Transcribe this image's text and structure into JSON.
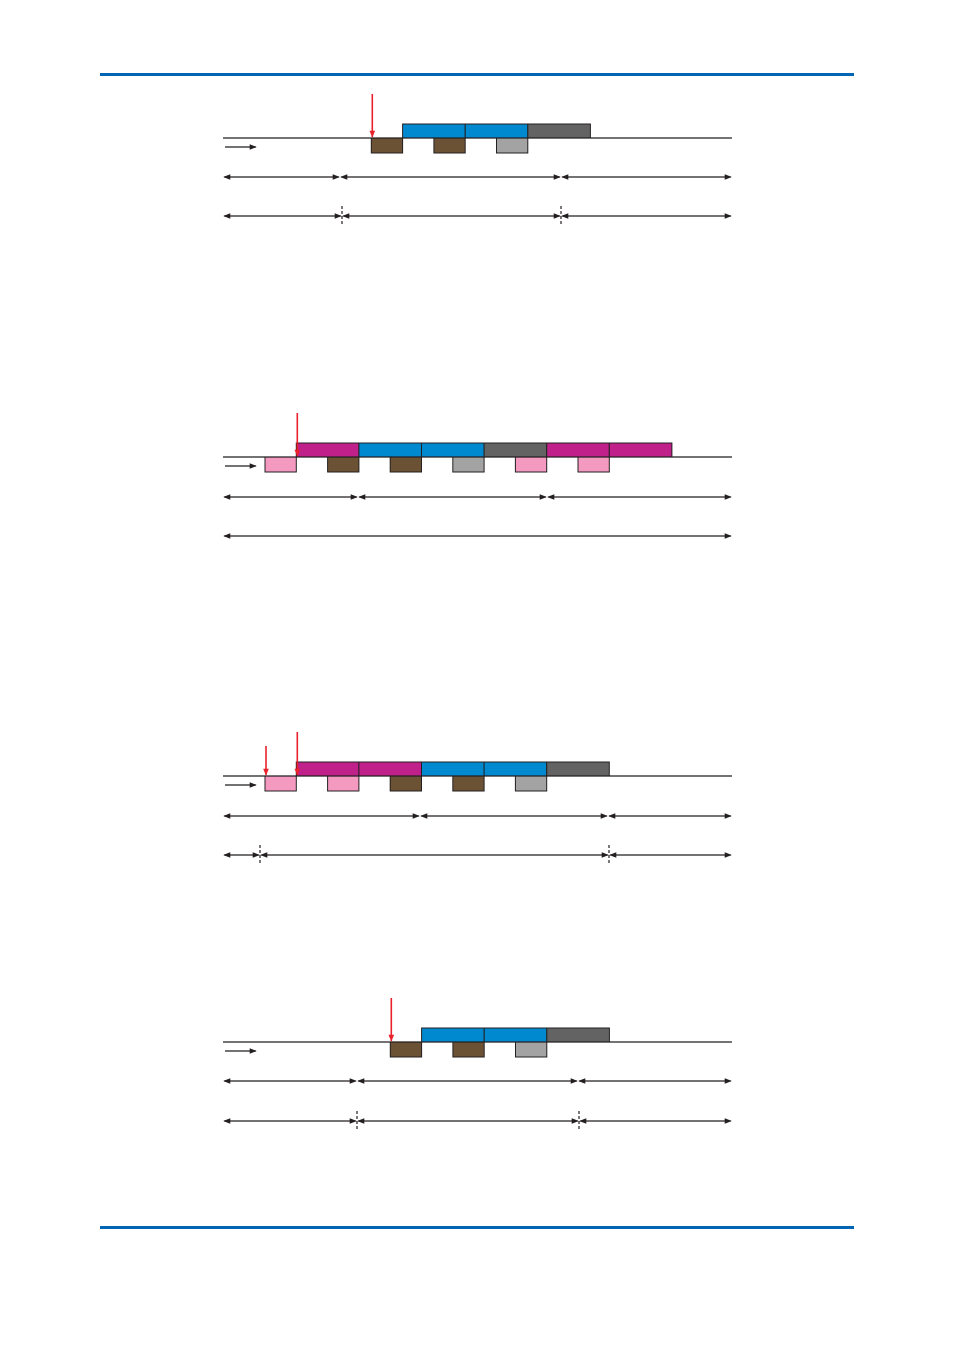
{
  "colors": {
    "rule": "#0066b3",
    "magenta": "#c0208a",
    "blue": "#0089cf",
    "dark_gray": "#636363",
    "brown": "#6b5235",
    "light_gray": "#a3a3a3",
    "pink": "#f49ac1",
    "red_marker": "#e8212b",
    "line": "#231f20"
  },
  "diagrams": [
    {
      "id": "timing-1",
      "upper": [
        "blue",
        "blue",
        "dark_gray"
      ],
      "upper_start_slot": 2,
      "lower": [
        {
          "slot": 1,
          "color": "brown"
        },
        {
          "slot": 3,
          "color": "brown"
        },
        {
          "slot": 5,
          "color": "light_gray"
        }
      ],
      "markers": [
        1
      ]
    },
    {
      "id": "timing-2",
      "upper": [
        "magenta",
        "blue",
        "blue",
        "dark_gray",
        "magenta",
        "magenta"
      ],
      "upper_start_slot": 1,
      "lower": [
        {
          "slot": 0,
          "color": "pink"
        },
        {
          "slot": 2,
          "color": "brown"
        },
        {
          "slot": 4,
          "color": "brown"
        },
        {
          "slot": 6,
          "color": "light_gray"
        },
        {
          "slot": 8,
          "color": "pink"
        },
        {
          "slot": 10,
          "color": "pink"
        }
      ],
      "markers": [
        1
      ]
    },
    {
      "id": "timing-3",
      "upper": [
        "magenta",
        "magenta",
        "blue",
        "blue",
        "dark_gray"
      ],
      "upper_start_slot": 1,
      "lower": [
        {
          "slot": 0,
          "color": "pink"
        },
        {
          "slot": 2,
          "color": "pink"
        },
        {
          "slot": 4,
          "color": "brown"
        },
        {
          "slot": 6,
          "color": "brown"
        },
        {
          "slot": 8,
          "color": "light_gray"
        }
      ],
      "markers": [
        0,
        1
      ]
    },
    {
      "id": "timing-4",
      "upper": [
        "blue",
        "blue",
        "dark_gray"
      ],
      "upper_start_slot": 2,
      "lower": [
        {
          "slot": 1,
          "color": "brown"
        },
        {
          "slot": 3,
          "color": "brown"
        },
        {
          "slot": 5,
          "color": "light_gray"
        }
      ],
      "markers": [
        1
      ]
    }
  ]
}
